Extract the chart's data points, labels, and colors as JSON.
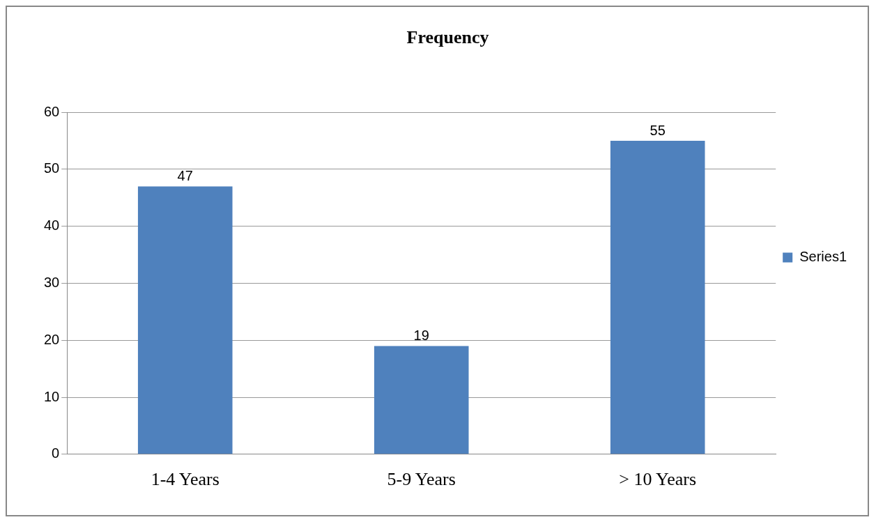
{
  "chart_data": {
    "type": "bar",
    "title": "Frequency",
    "categories": [
      "1-4 Years",
      "5-9 Years",
      "> 10 Years"
    ],
    "series": [
      {
        "name": "Series1",
        "color": "#4f81bd",
        "values": [
          47,
          19,
          55
        ]
      }
    ],
    "ylim": [
      0,
      60
    ],
    "yticks": [
      0,
      10,
      20,
      30,
      40,
      50,
      60
    ],
    "grid": "y",
    "legend": "right",
    "data_labels": true
  }
}
